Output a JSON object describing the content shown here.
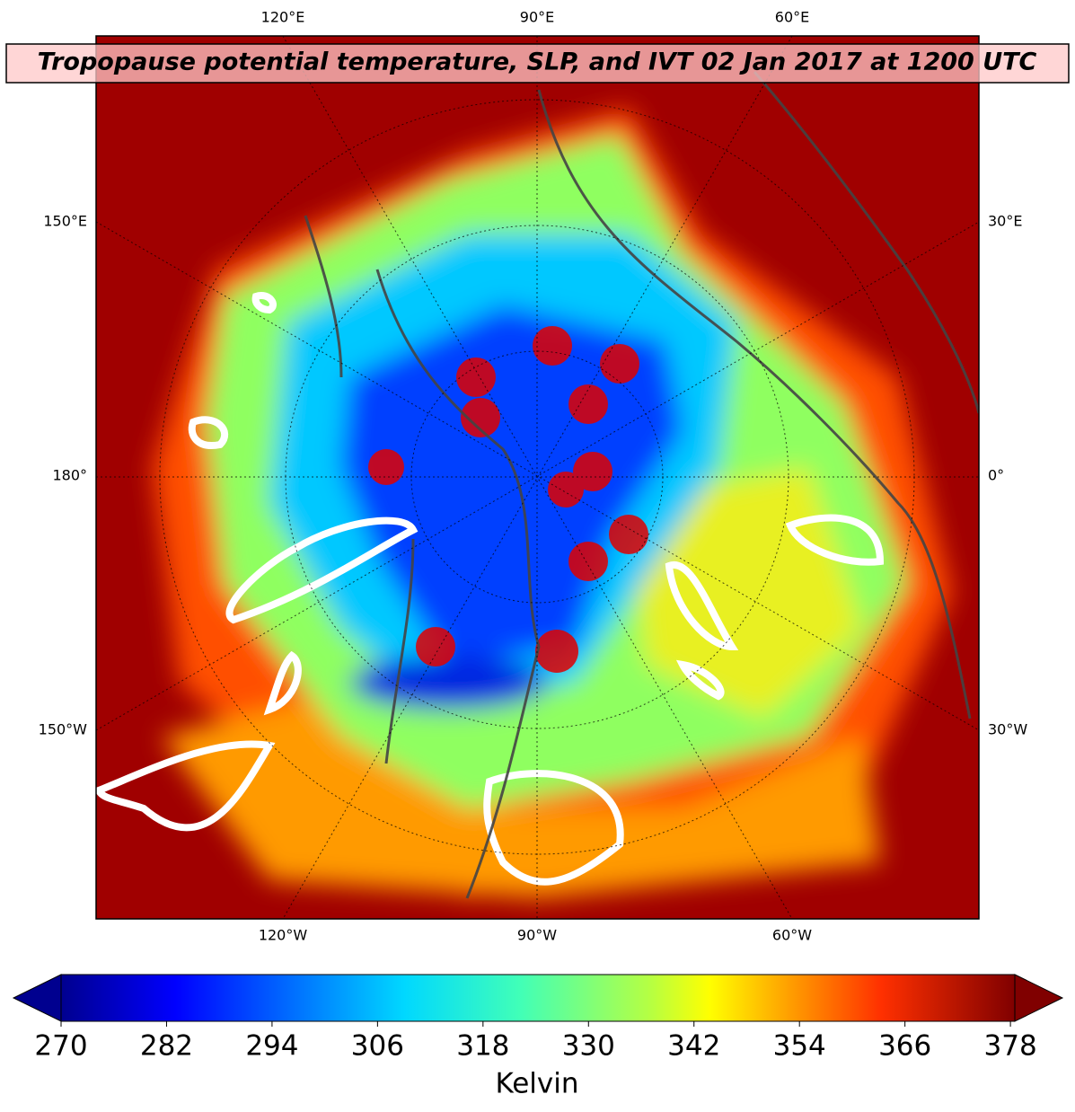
{
  "title": "Tropopause potential temperature, SLP, and IVT 02 Jan 2017 at 1200 UTC",
  "map": {
    "top_labels": [
      "120°E",
      "90°E",
      "60°E"
    ],
    "bottom_labels": [
      "120°W",
      "90°W",
      "60°W"
    ],
    "left_labels": [
      "150°E",
      "180°",
      "150°W"
    ],
    "right_labels": [
      "30°E",
      "0°",
      "30°W"
    ]
  },
  "colorbar": {
    "label": "Kelvin",
    "lim": [
      270,
      378.5
    ],
    "ticks": [
      270,
      282,
      294,
      306,
      318,
      330,
      342,
      354,
      366,
      378
    ]
  }
}
